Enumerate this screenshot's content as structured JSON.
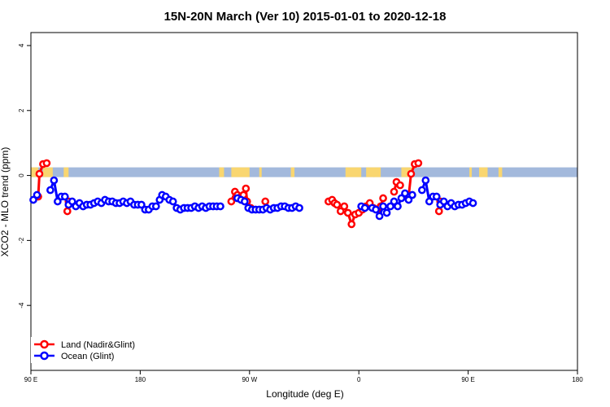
{
  "chart_data": {
    "type": "line",
    "title": "15N-20N March (Ver 10)   2015-01-01 to 2020-12-18",
    "xlabel": "Longitude (deg E)",
    "ylabel": "XCO2 - MLO trend (ppm)",
    "xlim": [
      90,
      450
    ],
    "ylim": [
      -6,
      4
    ],
    "x_ticks": [
      {
        "value": 90,
        "label": "90 E"
      },
      {
        "value": 180,
        "label": "180"
      },
      {
        "value": 270,
        "label": "90 W"
      },
      {
        "value": 360,
        "label": "0"
      },
      {
        "value": 450,
        "label": "90 E"
      },
      {
        "value": 540,
        "label": "180"
      }
    ],
    "y_ticks": [
      {
        "value": 4,
        "label": "4"
      },
      {
        "value": 2,
        "label": "2"
      },
      {
        "value": 0,
        "label": "0"
      },
      {
        "value": -2,
        "label": "-2"
      },
      {
        "value": -4,
        "label": "-4"
      }
    ],
    "legend_position": "bottom-left",
    "band": {
      "y_min": -0.05,
      "y_max": 0.25,
      "color": "#a3b9dc",
      "land_color": "#f9d670"
    },
    "land_segments": [
      [
        90,
        96
      ],
      [
        100,
        108
      ],
      [
        117,
        121
      ],
      [
        245,
        249
      ],
      [
        255,
        270
      ],
      [
        278,
        280
      ],
      [
        304,
        307
      ],
      [
        349,
        362
      ],
      [
        366,
        373
      ],
      [
        372,
        378
      ],
      [
        395,
        404
      ],
      [
        451,
        453
      ],
      [
        459,
        466
      ],
      [
        475,
        478
      ]
    ],
    "series": [
      {
        "name": "Land (Nadir&Glint)",
        "color": "#ff0000",
        "segments": [
          [
            [
              96,
              -0.65
            ],
            [
              97,
              0.05
            ],
            [
              100,
              0.35
            ],
            [
              103,
              0.38
            ]
          ],
          [
            [
              120,
              -1.1
            ],
            [
              121,
              -0.8
            ]
          ],
          [
            [
              255,
              -0.8
            ],
            [
              258,
              -0.5
            ],
            [
              260,
              -0.6
            ],
            [
              263,
              -0.65
            ],
            [
              265,
              -0.6
            ],
            [
              267,
              -0.4
            ],
            [
              268,
              -0.8
            ],
            [
              271,
              -1.0
            ]
          ],
          [
            [
              283,
              -0.8
            ]
          ],
          [
            [
              335,
              -0.8
            ],
            [
              338,
              -0.75
            ],
            [
              340,
              -0.85
            ],
            [
              342,
              -0.9
            ],
            [
              345,
              -1.1
            ],
            [
              348,
              -0.95
            ],
            [
              351,
              -1.15
            ],
            [
              354,
              -1.5
            ],
            [
              357,
              -1.2
            ],
            [
              360,
              -1.15
            ],
            [
              363,
              -1.05
            ],
            [
              366,
              -0.95
            ],
            [
              369,
              -0.85
            ],
            [
              372,
              -1.0
            ],
            [
              375,
              -1.05
            ],
            [
              378,
              -0.95
            ],
            [
              380,
              -0.7
            ]
          ],
          [
            [
              389,
              -0.5
            ],
            [
              391,
              -0.2
            ],
            [
              394,
              -0.3
            ]
          ],
          [
            [
              401,
              -0.65
            ],
            [
              403,
              0.05
            ],
            [
              406,
              0.35
            ],
            [
              409,
              0.38
            ]
          ],
          [
            [
              426,
              -1.1
            ],
            [
              427,
              -0.8
            ]
          ]
        ]
      },
      {
        "name": "Ocean (Glint)",
        "color": "#0000ff",
        "segments": [
          [
            [
              92,
              -0.75
            ],
            [
              95,
              -0.6
            ]
          ],
          [
            [
              106,
              -0.45
            ],
            [
              109,
              -0.15
            ],
            [
              112,
              -0.8
            ],
            [
              115,
              -0.65
            ],
            [
              118,
              -0.65
            ],
            [
              121,
              -0.9
            ],
            [
              124,
              -0.8
            ],
            [
              127,
              -0.95
            ],
            [
              130,
              -0.85
            ],
            [
              133,
              -0.95
            ],
            [
              136,
              -0.9
            ],
            [
              139,
              -0.9
            ],
            [
              142,
              -0.85
            ],
            [
              145,
              -0.8
            ],
            [
              148,
              -0.85
            ],
            [
              151,
              -0.75
            ],
            [
              154,
              -0.8
            ],
            [
              157,
              -0.8
            ],
            [
              160,
              -0.85
            ],
            [
              163,
              -0.85
            ],
            [
              166,
              -0.8
            ],
            [
              169,
              -0.85
            ],
            [
              172,
              -0.8
            ],
            [
              175,
              -0.9
            ],
            [
              178,
              -0.9
            ],
            [
              181,
              -0.9
            ],
            [
              184,
              -1.05
            ],
            [
              187,
              -1.05
            ],
            [
              190,
              -0.95
            ],
            [
              193,
              -0.95
            ],
            [
              196,
              -0.75
            ],
            [
              198,
              -0.6
            ],
            [
              201,
              -0.65
            ],
            [
              204,
              -0.75
            ],
            [
              207,
              -0.8
            ],
            [
              210,
              -1.0
            ],
            [
              213,
              -1.05
            ],
            [
              216,
              -1.0
            ],
            [
              219,
              -1.0
            ],
            [
              222,
              -1.0
            ],
            [
              225,
              -0.95
            ],
            [
              228,
              -1.0
            ],
            [
              231,
              -0.95
            ],
            [
              234,
              -1.0
            ],
            [
              237,
              -0.95
            ],
            [
              240,
              -0.95
            ],
            [
              243,
              -0.95
            ],
            [
              246,
              -0.95
            ]
          ],
          [
            [
              260,
              -0.7
            ],
            [
              263,
              -0.75
            ],
            [
              266,
              -0.8
            ],
            [
              269,
              -1.0
            ],
            [
              272,
              -1.05
            ],
            [
              275,
              -1.05
            ],
            [
              278,
              -1.05
            ],
            [
              281,
              -1.05
            ],
            [
              284,
              -1.0
            ],
            [
              287,
              -1.05
            ],
            [
              290,
              -1.0
            ],
            [
              293,
              -1.0
            ],
            [
              296,
              -0.95
            ],
            [
              299,
              -0.95
            ],
            [
              302,
              -1.0
            ],
            [
              305,
              -1.0
            ],
            [
              308,
              -0.95
            ],
            [
              311,
              -1.0
            ]
          ],
          [
            [
              362,
              -0.95
            ],
            [
              365,
              -1.0
            ]
          ],
          [
            [
              371,
              -1.0
            ],
            [
              374,
              -1.05
            ],
            [
              377,
              -1.25
            ],
            [
              380,
              -0.95
            ],
            [
              383,
              -1.15
            ],
            [
              386,
              -0.95
            ],
            [
              389,
              -0.8
            ],
            [
              392,
              -0.95
            ],
            [
              395,
              -0.7
            ],
            [
              398,
              -0.55
            ],
            [
              401,
              -0.75
            ],
            [
              404,
              -0.6
            ]
          ],
          [
            [
              412,
              -0.45
            ],
            [
              415,
              -0.15
            ],
            [
              418,
              -0.8
            ],
            [
              421,
              -0.65
            ],
            [
              424,
              -0.65
            ],
            [
              427,
              -0.9
            ],
            [
              430,
              -0.8
            ],
            [
              433,
              -0.95
            ],
            [
              436,
              -0.85
            ],
            [
              439,
              -0.95
            ],
            [
              442,
              -0.9
            ],
            [
              445,
              -0.9
            ],
            [
              448,
              -0.85
            ],
            [
              451,
              -0.8
            ],
            [
              454,
              -0.85
            ]
          ]
        ]
      }
    ]
  }
}
